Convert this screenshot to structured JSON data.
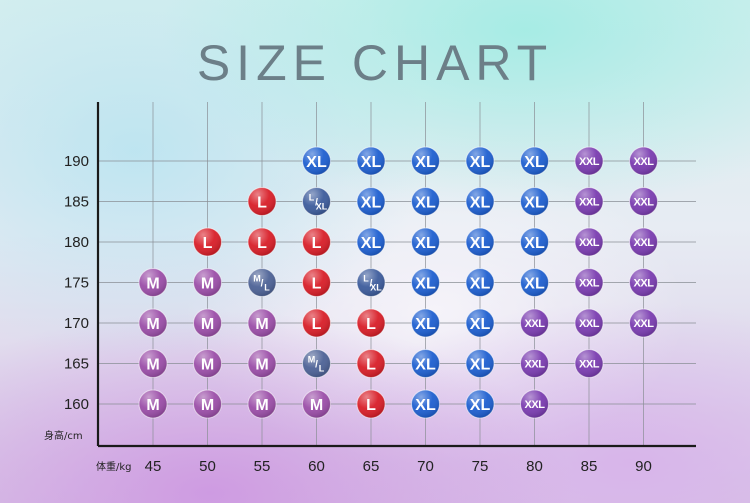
{
  "chart_data": {
    "type": "scatter",
    "title": "SIZE CHART",
    "xlabel": "体重/kg",
    "ylabel": "身高/cm",
    "x_ticks": [
      45,
      50,
      55,
      60,
      65,
      70,
      75,
      80,
      85,
      90
    ],
    "y_ticks": [
      160,
      165,
      170,
      175,
      180,
      185,
      190
    ],
    "grid": true,
    "colors": {
      "M": "#9b4ea8",
      "L": "#d81e28",
      "XL": "#1e5fd0",
      "XXL": "#7a3cb0",
      "M/L": "#4d6296",
      "L/XL": "#3d5c9c"
    },
    "points": [
      {
        "x": 45,
        "y": 160,
        "size": "M"
      },
      {
        "x": 45,
        "y": 165,
        "size": "M"
      },
      {
        "x": 45,
        "y": 170,
        "size": "M"
      },
      {
        "x": 45,
        "y": 175,
        "size": "M"
      },
      {
        "x": 50,
        "y": 160,
        "size": "M"
      },
      {
        "x": 50,
        "y": 165,
        "size": "M"
      },
      {
        "x": 50,
        "y": 170,
        "size": "M"
      },
      {
        "x": 50,
        "y": 175,
        "size": "M"
      },
      {
        "x": 50,
        "y": 180,
        "size": "L"
      },
      {
        "x": 55,
        "y": 160,
        "size": "M"
      },
      {
        "x": 55,
        "y": 165,
        "size": "M"
      },
      {
        "x": 55,
        "y": 170,
        "size": "M"
      },
      {
        "x": 55,
        "y": 175,
        "size": "M/L"
      },
      {
        "x": 55,
        "y": 180,
        "size": "L"
      },
      {
        "x": 55,
        "y": 185,
        "size": "L"
      },
      {
        "x": 60,
        "y": 160,
        "size": "M"
      },
      {
        "x": 60,
        "y": 165,
        "size": "M/L"
      },
      {
        "x": 60,
        "y": 170,
        "size": "L"
      },
      {
        "x": 60,
        "y": 175,
        "size": "L"
      },
      {
        "x": 60,
        "y": 180,
        "size": "L"
      },
      {
        "x": 60,
        "y": 185,
        "size": "L/XL"
      },
      {
        "x": 60,
        "y": 190,
        "size": "XL"
      },
      {
        "x": 65,
        "y": 160,
        "size": "L"
      },
      {
        "x": 65,
        "y": 165,
        "size": "L"
      },
      {
        "x": 65,
        "y": 170,
        "size": "L"
      },
      {
        "x": 65,
        "y": 175,
        "size": "L/XL"
      },
      {
        "x": 65,
        "y": 180,
        "size": "XL"
      },
      {
        "x": 65,
        "y": 185,
        "size": "XL"
      },
      {
        "x": 65,
        "y": 190,
        "size": "XL"
      },
      {
        "x": 70,
        "y": 160,
        "size": "XL"
      },
      {
        "x": 70,
        "y": 165,
        "size": "XL"
      },
      {
        "x": 70,
        "y": 170,
        "size": "XL"
      },
      {
        "x": 70,
        "y": 175,
        "size": "XL"
      },
      {
        "x": 70,
        "y": 180,
        "size": "XL"
      },
      {
        "x": 70,
        "y": 185,
        "size": "XL"
      },
      {
        "x": 70,
        "y": 190,
        "size": "XL"
      },
      {
        "x": 75,
        "y": 160,
        "size": "XL"
      },
      {
        "x": 75,
        "y": 165,
        "size": "XL"
      },
      {
        "x": 75,
        "y": 170,
        "size": "XL"
      },
      {
        "x": 75,
        "y": 175,
        "size": "XL"
      },
      {
        "x": 75,
        "y": 180,
        "size": "XL"
      },
      {
        "x": 75,
        "y": 185,
        "size": "XL"
      },
      {
        "x": 75,
        "y": 190,
        "size": "XL"
      },
      {
        "x": 80,
        "y": 160,
        "size": "XXL"
      },
      {
        "x": 80,
        "y": 165,
        "size": "XXL"
      },
      {
        "x": 80,
        "y": 170,
        "size": "XXL"
      },
      {
        "x": 80,
        "y": 175,
        "size": "XL"
      },
      {
        "x": 80,
        "y": 180,
        "size": "XL"
      },
      {
        "x": 80,
        "y": 185,
        "size": "XL"
      },
      {
        "x": 80,
        "y": 190,
        "size": "XL"
      },
      {
        "x": 85,
        "y": 165,
        "size": "XXL"
      },
      {
        "x": 85,
        "y": 170,
        "size": "XXL"
      },
      {
        "x": 85,
        "y": 175,
        "size": "XXL"
      },
      {
        "x": 85,
        "y": 180,
        "size": "XXL"
      },
      {
        "x": 85,
        "y": 185,
        "size": "XXL"
      },
      {
        "x": 85,
        "y": 190,
        "size": "XXL"
      },
      {
        "x": 90,
        "y": 170,
        "size": "XXL"
      },
      {
        "x": 90,
        "y": 175,
        "size": "XXL"
      },
      {
        "x": 90,
        "y": 180,
        "size": "XXL"
      },
      {
        "x": 90,
        "y": 185,
        "size": "XXL"
      },
      {
        "x": 90,
        "y": 190,
        "size": "XXL"
      }
    ]
  }
}
